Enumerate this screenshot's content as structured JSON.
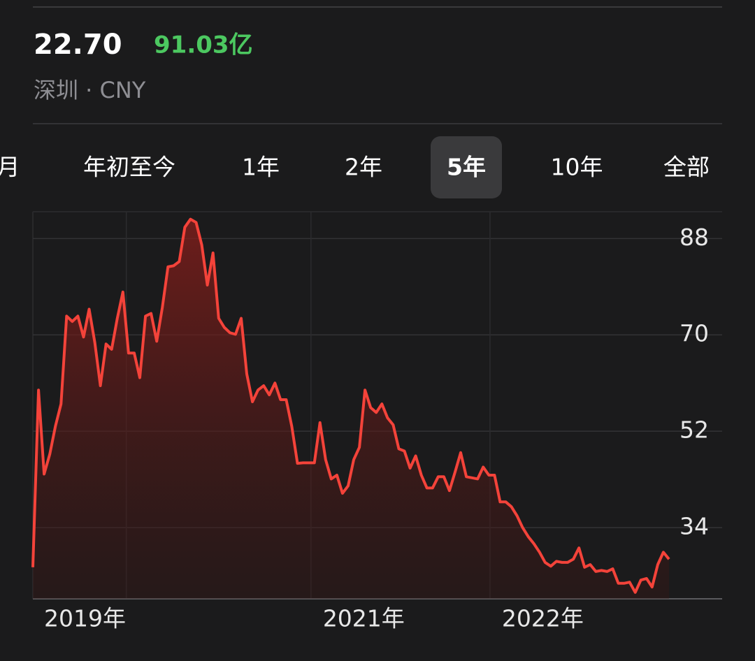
{
  "header": {
    "price": "22.70",
    "change": "91.03亿",
    "exchange": "深圳 · CNY"
  },
  "tabs": [
    "月",
    "年初至今",
    "1年",
    "2年",
    "5年",
    "10年",
    "全部"
  ],
  "selected_tab": 4,
  "chart_data": {
    "type": "line",
    "series": [
      {
        "color": "#f4433a",
        "values": [
          26.6,
          59.7,
          44.0,
          47.7,
          52.9,
          57.1,
          73.5,
          72.5,
          73.5,
          69.6,
          74.8,
          68.6,
          60.5,
          68.3,
          67.3,
          73.1,
          78.0,
          66.6,
          66.6,
          62.0,
          73.5,
          74.0,
          68.8,
          75.1,
          82.7,
          82.9,
          83.7,
          90.1,
          91.6,
          91.0,
          86.8,
          79.3,
          85.3,
          73.1,
          71.4,
          70.4,
          70.1,
          73.1,
          62.7,
          57.5,
          59.7,
          60.5,
          58.8,
          61.0,
          57.9,
          57.9,
          52.9,
          46.0,
          46.1,
          46.1,
          46.1,
          53.6,
          46.7,
          43.1,
          43.8,
          40.4,
          41.8,
          46.7,
          49.0,
          59.7,
          56.4,
          55.5,
          57.1,
          54.5,
          53.2,
          48.7,
          48.3,
          45.1,
          47.4,
          43.8,
          41.4,
          41.4,
          43.5,
          43.5,
          40.9,
          44.4,
          48.0,
          43.5,
          43.3,
          43.1,
          45.3,
          43.8,
          43.8,
          38.8,
          38.8,
          37.9,
          36.2,
          34.0,
          32.3,
          31.0,
          29.4,
          27.5,
          26.8,
          27.7,
          27.5,
          27.5,
          28.1,
          30.2,
          26.6,
          27.1,
          25.8,
          26.0,
          25.8,
          26.3,
          23.6,
          23.6,
          23.8,
          21.9,
          24.2,
          24.5,
          22.9,
          27.1,
          29.4,
          28.1
        ]
      }
    ],
    "xlim": [
      0,
      113
    ],
    "xticks": [
      {
        "value": 16.6,
        "label": "2019年"
      },
      {
        "value": 49.4,
        "label": "2021年"
      },
      {
        "value": 81.2,
        "label": "2022年"
      }
    ],
    "ylim": [
      20.7,
      93
    ],
    "yticks": [
      34,
      52,
      70,
      88
    ],
    "grid": true
  }
}
